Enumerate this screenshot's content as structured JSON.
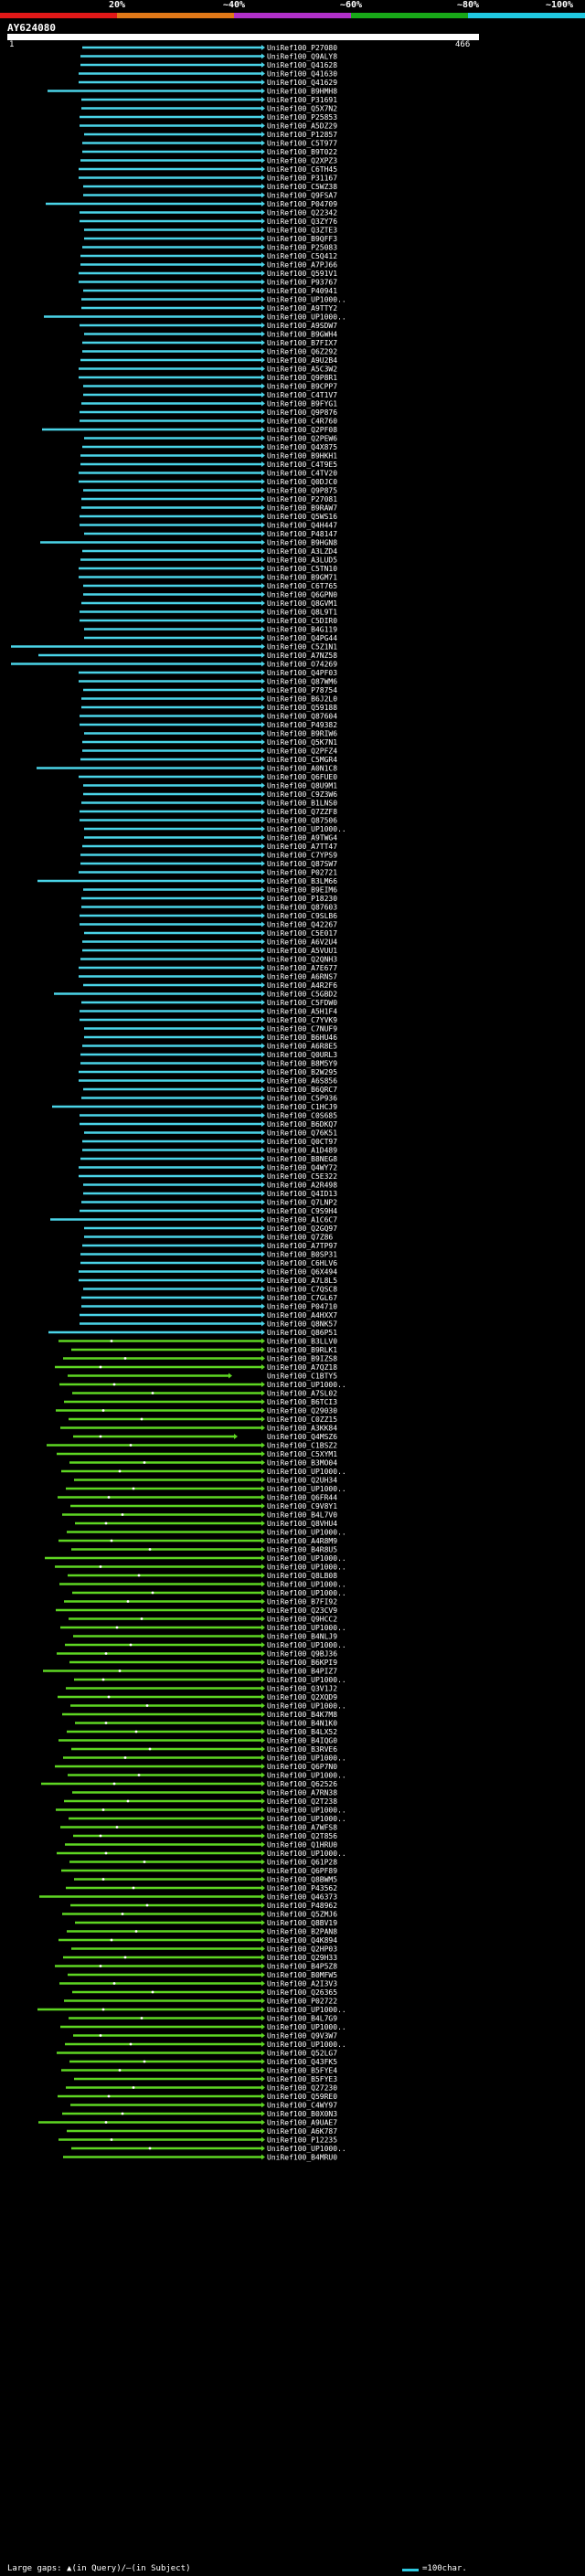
{
  "legend": {
    "ticks": [
      "20%",
      "~40%",
      "~60%",
      "~80%",
      "~100%"
    ],
    "colors": [
      "#e01818",
      "#e07818",
      "#b030c8",
      "#18a818",
      "#20c8e0"
    ]
  },
  "query": {
    "name": "AY624080",
    "start": "1",
    "end": "466"
  },
  "colors": {
    "cyan": "#4ad4e8",
    "green": "#5ed622"
  },
  "hits": [
    "UniRef100_P27080",
    "UniRef100_Q9ALY8",
    "UniRef100_Q41628",
    "UniRef100_Q41630",
    "UniRef100_Q41629",
    "UniRef100_B9HMH8",
    "UniRef100_P31691",
    "UniRef100_Q5X7N2",
    "UniRef100_P25853",
    "UniRef100_A5DZ29",
    "UniRef100_P12857",
    "UniRef100_C5T977",
    "UniRef100_B9T022",
    "UniRef100_Q2XPZ3",
    "UniRef100_C6TH45",
    "UniRef100_P31167",
    "UniRef100_C5WZ38",
    "UniRef100_Q9FSA7",
    "UniRef100_P04709",
    "UniRef100_Q22342",
    "UniRef100_Q3ZY76",
    "UniRef100_Q3ZTE3",
    "UniRef100_B9QFF3",
    "UniRef100_P25083",
    "UniRef100_C5Q412",
    "UniRef100_A7PJ66",
    "UniRef100_Q591V1",
    "UniRef100_P93767",
    "UniRef100_P40941",
    "UniRef100_UP1000..",
    "UniRef100_A9TTY2",
    "UniRef100_UP1000..",
    "UniRef100_A9SDW7",
    "UniRef100_B9GWH4",
    "UniRef100_B7FIX7",
    "UniRef100_Q6Z292",
    "UniRef100_A9U2B4",
    "UniRef100_A5C3W2",
    "UniRef100_Q9P8R1",
    "UniRef100_B9CPP7",
    "UniRef100_C4T1V7",
    "UniRef100_B9FYG1",
    "UniRef100_Q9P876",
    "UniRef100_C4R760",
    "UniRef100_Q2PF08",
    "UniRef100_Q2PEW6",
    "UniRef100_Q4X875",
    "UniRef100_B9HKH1",
    "UniRef100_C4T9E5",
    "UniRef100_C4TV20",
    "UniRef100_Q0DJC0",
    "UniRef100_Q9P875",
    "UniRef100_P27081",
    "UniRef100_B9RAW7",
    "UniRef100_Q5WS16",
    "UniRef100_Q4H447",
    "UniRef100_P48147",
    "UniRef100_B9HGN8",
    "UniRef100_A3LZD4",
    "UniRef100_A3LUD5",
    "UniRef100_C5TN10",
    "UniRef100_B9GM71",
    "UniRef100_C6T765",
    "UniRef100_Q6GPN0",
    "UniRef100_Q8GVM1",
    "UniRef100_Q8L9T1",
    "UniRef100_C5DIR0",
    "UniRef100_B4G119",
    "UniRef100_Q4PG44",
    "UniRef100_C5Z1N1",
    "UniRef100_A7NZ58",
    "UniRef100_O74269",
    "UniRef100_Q4PF03",
    "UniRef100_Q87WM6",
    "UniRef100_P78754",
    "UniRef100_B6J2L0",
    "UniRef100_Q59188",
    "UniRef100_Q87604",
    "UniRef100_P49382",
    "UniRef100_B9RIW6",
    "UniRef100_Q5K7N1",
    "UniRef100_Q2PFZ4",
    "UniRef100_C5MGR4",
    "UniRef100_A0N1C8",
    "UniRef100_Q6FUE0",
    "UniRef100_Q8U9M1",
    "UniRef100_C9Z3W6",
    "UniRef100_B1LNS0",
    "UniRef100_Q7ZZF8",
    "UniRef100_Q87506",
    "UniRef100_UP1000..",
    "UniRef100_A9TWG4",
    "UniRef100_A7TT47",
    "UniRef100_C7YPS9",
    "UniRef100_Q87SW7",
    "UniRef100_P02721",
    "UniRef100_B3LM66",
    "UniRef100_B9EIM6",
    "UniRef100_P18230",
    "UniRef100_Q87603",
    "UniRef100_C9SLB6",
    "UniRef100_Q42267",
    "UniRef100_C5E017",
    "UniRef100_A6V2U4",
    "UniRef100_A5VUU1",
    "UniRef100_Q2QNH3",
    "UniRef100_A7E677",
    "UniRef100_A6RNS7",
    "UniRef100_A4R2F6",
    "UniRef100_C5GBD2",
    "UniRef100_C5FDW0",
    "UniRef100_A5H1F4",
    "UniRef100_C7YVK9",
    "UniRef100_C7NUF9",
    "UniRef100_B6HU46",
    "UniRef100_A6R8E5",
    "UniRef100_Q0URL3",
    "UniRef100_B8M5Y9",
    "UniRef100_B2W295",
    "UniRef100_A6S856",
    "UniRef100_B6QRC7",
    "UniRef100_C5P936",
    "UniRef100_C1HCJ9",
    "UniRef100_C0S685",
    "UniRef100_B6DKQ7",
    "UniRef100_Q76K51",
    "UniRef100_Q0CT97",
    "UniRef100_A1D489",
    "UniRef100_B8NEG8",
    "UniRef100_Q4WY72",
    "UniRef100_C5E322",
    "UniRef100_A2R498",
    "UniRef100_Q4ID13",
    "UniRef100_Q7LNP2",
    "UniRef100_C9S9H4",
    "UniRef100_A1C6C7",
    "UniRef100_Q2GQ97",
    "UniRef100_Q7Z86",
    "UniRef100_A7TP97",
    "UniRef100_B0SP31",
    "UniRef100_C6HLV6",
    "UniRef100_Q6X494",
    "UniRef100_A7L8L5",
    "UniRef100_C7QSC8",
    "UniRef100_C7GL67",
    "UniRef100_P04710",
    "UniRef100_A4HXX7",
    "UniRef100_Q8NK57",
    "UniRef100_Q86P51",
    "UniRef100_B3LLV0",
    "UniRef100_B9RLK1",
    "UniRef100_B9IZS8",
    "UniRef100_A7QZ18",
    "UniRef100_C1BTY5",
    "UniRef100_UP1000..",
    "UniRef100_A7SL02",
    "UniRef100_B6TCI3",
    "UniRef100_Q29030",
    "UniRef100_C0ZZ15",
    "UniRef100_A3KK84",
    "UniRef100_Q4MSZ6",
    "UniRef100_C1BSZ2",
    "UniRef100_C5XYM1",
    "UniRef100_B3MO04",
    "UniRef100_UP1000..",
    "UniRef100_Q2UH34",
    "UniRef100_UP1000..",
    "UniRef100_Q6FR44",
    "UniRef100_C9V8Y1",
    "UniRef100_B4L7V0",
    "UniRef100_Q8VHU4",
    "UniRef100_UP1000..",
    "UniRef100_A4R8M9",
    "UniRef100_B4R8U5",
    "UniRef100_UP1000..",
    "UniRef100_UP1000..",
    "UniRef100_Q8LB08",
    "UniRef100_UP1000..",
    "UniRef100_UP1000..",
    "UniRef100_B7FI92",
    "UniRef100_Q23CV9",
    "UniRef100_Q9HCC2",
    "UniRef100_UP1000..",
    "UniRef100_B4NLJ9",
    "UniRef100_UP1000..",
    "UniRef100_Q9BJ36",
    "UniRef100_B6KPI9",
    "UniRef100_B4PIZ7",
    "UniRef100_UP1000..",
    "UniRef100_Q3V1J2",
    "UniRef100_Q2XQD9",
    "UniRef100_UP1000..",
    "UniRef100_B4K7M8",
    "UniRef100_B4N1K0",
    "UniRef100_B4LX52",
    "UniRef100_B4IQG0",
    "UniRef100_B3RVE6",
    "UniRef100_UP1000..",
    "UniRef100_Q6P7N0",
    "UniRef100_UP1000..",
    "UniRef100_Q62526",
    "UniRef100_A7RN38",
    "UniRef100_Q2T238",
    "UniRef100_UP1000..",
    "UniRef100_UP1000..",
    "UniRef100_A7WFS8",
    "UniRef100_Q2T856",
    "UniRef100_Q1HRU0",
    "UniRef100_UP1000..",
    "UniRef100_Q61P28",
    "UniRef100_Q6PF89",
    "UniRef100_Q8BWM5",
    "UniRef100_P43562",
    "UniRef100_Q46373",
    "UniRef100_P48962",
    "UniRef100_Q5ZMJ6",
    "UniRef100_Q8BV19",
    "UniRef100_B2PAN8",
    "UniRef100_Q4K894",
    "UniRef100_Q2HP03",
    "UniRef100_Q29H33",
    "UniRef100_B4P5Z8",
    "UniRef100_B0MFW5",
    "UniRef100_A2I3V3",
    "UniRef100_Q26365",
    "UniRef100_P02722",
    "UniRef100_UP1000..",
    "UniRef100_B4L7G9",
    "UniRef100_UP1000..",
    "UniRef100_Q9V3W7",
    "UniRef100_UP1000..",
    "UniRef100_Q52LG7",
    "UniRef100_Q43FK5",
    "UniRef100_B5FYE4",
    "UniRef100_B5FYE3",
    "UniRef100_Q27230",
    "UniRef100_Q59RE0",
    "UniRef100_C4WY97",
    "UniRef100_B0X0N3",
    "UniRef100_A9UAE7",
    "UniRef100_A6K787",
    "UniRef100_P12235",
    "UniRef100_UP1000..",
    "UniRef100_B4MRU0"
  ],
  "footer": {
    "gaps_text": "Large gaps: ▲(in Query)/—(in Subject)",
    "scale_text": "=100char."
  }
}
